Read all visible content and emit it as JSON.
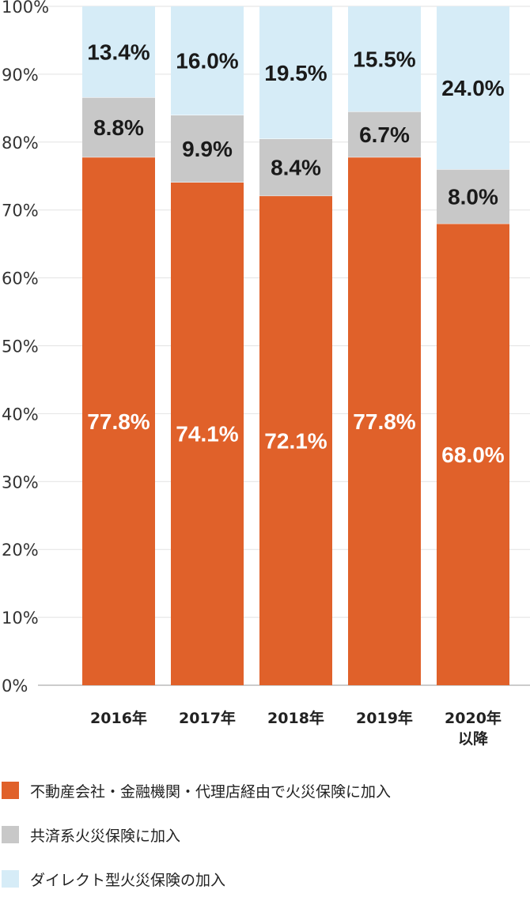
{
  "chart_data": {
    "type": "bar",
    "stacked": true,
    "categories": [
      "2016年",
      "2017年",
      "2018年",
      "2019年",
      "2020年\n以降"
    ],
    "series": [
      {
        "name": "不動産会社・金融機関・代理店経由で火災保険に加入",
        "color": "#e0612a",
        "values": [
          77.8,
          74.1,
          72.1,
          77.8,
          68.0
        ],
        "labels": [
          "77.8%",
          "74.1%",
          "72.1%",
          "77.8%",
          "68.0%"
        ],
        "label_color": "light"
      },
      {
        "name": "共済系火災保険に加入",
        "color": "#c8c8c8",
        "values": [
          8.8,
          9.9,
          8.4,
          6.7,
          8.0
        ],
        "labels": [
          "8.8%",
          "9.9%",
          "8.4%",
          "6.7%",
          "8.0%"
        ],
        "label_color": "dark"
      },
      {
        "name": "ダイレクト型火災保険の加入",
        "color": "#d6ecf7",
        "values": [
          13.4,
          16.0,
          19.5,
          15.5,
          24.0
        ],
        "labels": [
          "13.4%",
          "16.0%",
          "19.5%",
          "15.5%",
          "24.0%"
        ],
        "label_color": "dark"
      }
    ],
    "ylim": [
      0,
      100
    ],
    "yticks": [
      "0%",
      "10%",
      "20%",
      "30%",
      "40%",
      "50%",
      "60%",
      "70%",
      "80%",
      "90%",
      "100%"
    ],
    "grid": true,
    "legend_position": "bottom"
  }
}
